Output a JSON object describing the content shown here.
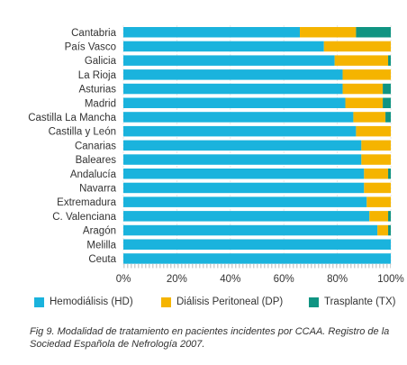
{
  "chart_data": {
    "type": "bar",
    "orientation": "horizontal",
    "stacked": true,
    "categories": [
      "Cantabria",
      "País Vasco",
      "Galicia",
      "La Rioja",
      "Asturias",
      "Madrid",
      "Castilla La Mancha",
      "Castilla y León",
      "Canarias",
      "Baleares",
      "Andalucía",
      "Navarra",
      "Extremadura",
      "C. Valenciana",
      "Aragón",
      "Melilla",
      "Ceuta"
    ],
    "series": [
      {
        "name": "Hemodiálisis (HD)",
        "color": "#1ab3dd",
        "values": [
          66,
          75,
          79,
          82,
          82,
          83,
          86,
          87,
          89,
          89,
          90,
          90,
          91,
          92,
          95,
          100,
          100
        ]
      },
      {
        "name": "Diálisis Peritoneal (DP)",
        "color": "#f5b400",
        "values": [
          21,
          25,
          20,
          18,
          15,
          14,
          12,
          13,
          11,
          11,
          9,
          10,
          9,
          7,
          4,
          0,
          0
        ]
      },
      {
        "name": "Trasplante (TX)",
        "color": "#109482",
        "values": [
          13,
          0,
          1,
          0,
          3,
          3,
          2,
          0,
          0,
          0,
          1,
          0,
          0,
          1,
          1,
          0,
          0
        ]
      }
    ],
    "xlim": [
      0,
      100
    ],
    "xticks": [
      "0%",
      "20%",
      "40%",
      "60%",
      "80%",
      "100%"
    ],
    "grid": true,
    "legend_position": "bottom"
  },
  "caption": "Fig 9. Modalidad de tratamiento en pacientes incidentes por CCAA. Registro de la Sociedad Española de Nefrología 2007."
}
